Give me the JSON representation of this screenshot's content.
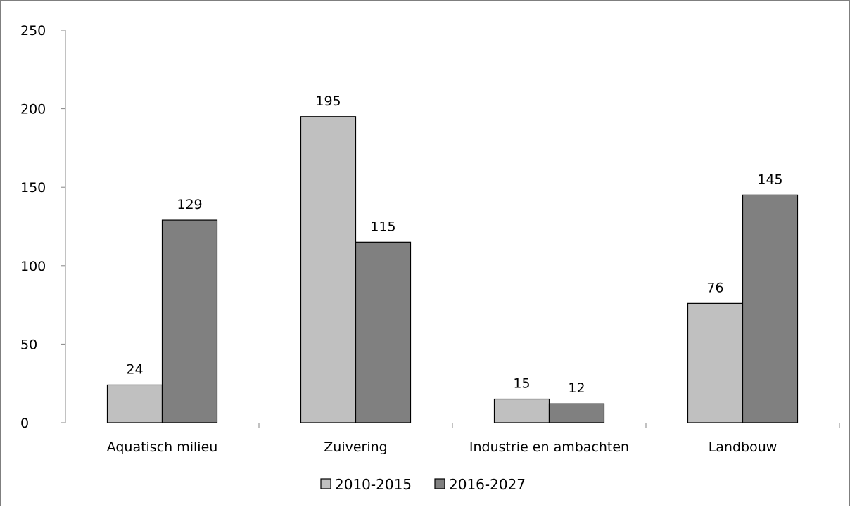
{
  "chart_data": {
    "type": "bar",
    "categories": [
      "Aquatisch milieu",
      "Zuivering",
      "Industrie en ambachten",
      "Landbouw"
    ],
    "series": [
      {
        "name": "2010-2015",
        "values": [
          24,
          195,
          15,
          76
        ],
        "color": "#c0c0c0"
      },
      {
        "name": "2016-2027",
        "values": [
          129,
          115,
          12,
          145
        ],
        "color": "#808080"
      }
    ],
    "ylim": [
      0,
      250
    ],
    "yticks": [
      0,
      50,
      100,
      150,
      200,
      250
    ],
    "grid": false,
    "legend": "bottom-center",
    "title": "",
    "xlabel": "",
    "ylabel": ""
  }
}
